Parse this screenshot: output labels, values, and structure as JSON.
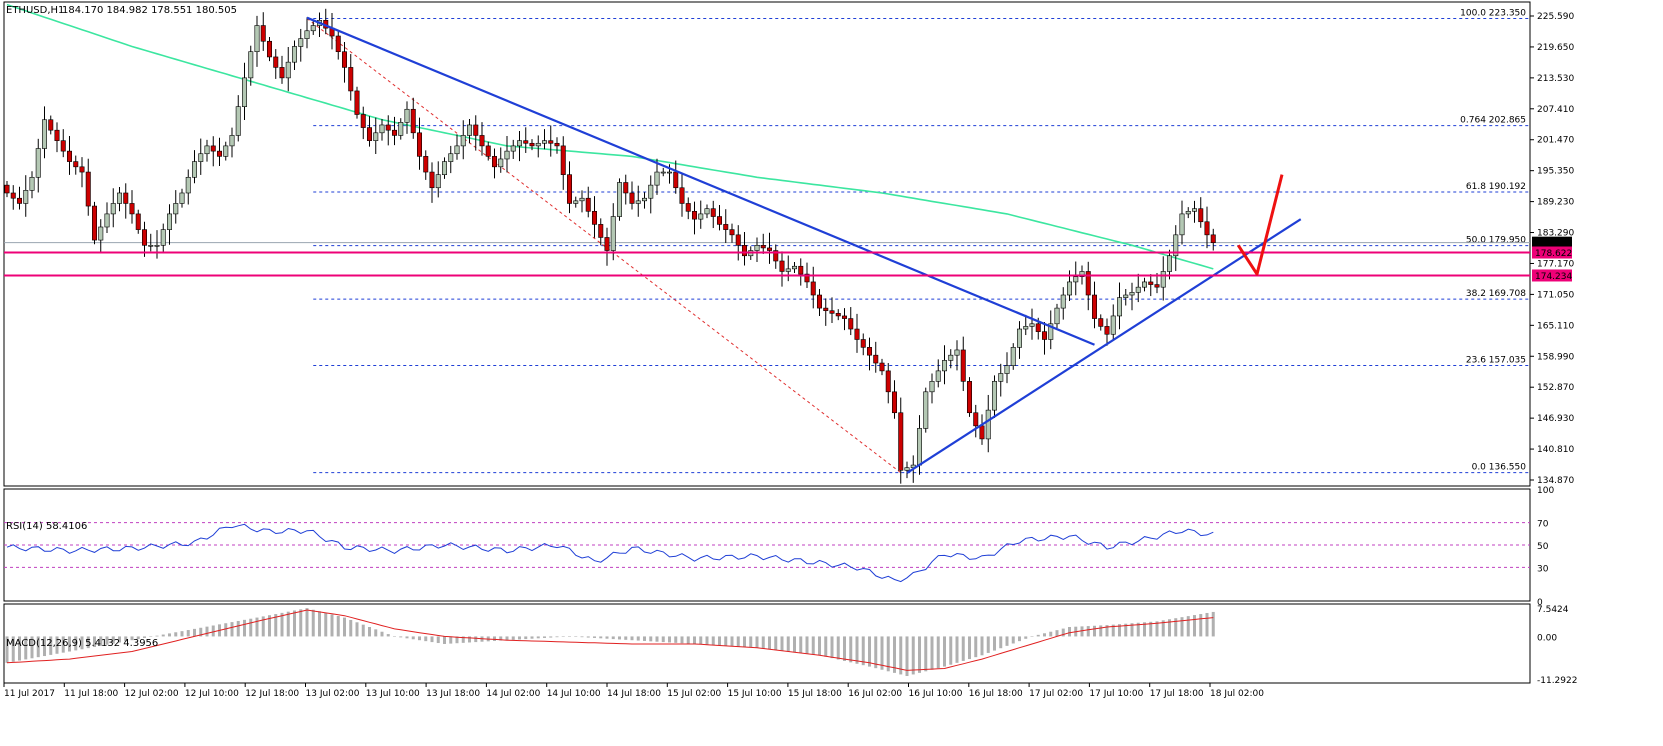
{
  "header": {
    "symbol_label": "ETHUSD,H1",
    "ohlc_label": "184.170 184.982 178.551 180.505"
  },
  "colors": {
    "bull_fill": "#b4c8b4",
    "bear_fill": "#cc0000",
    "candle_outline": "#000000",
    "ma": "#3ce6a0",
    "trendline": "#1f3fd6",
    "fib": "#1f3fd6",
    "fib_diagonal": "#e03030",
    "support": "#ee0077",
    "red_arrow": "#ee1111",
    "rsi": "#1f3fd6",
    "macd_hist": "#b0b0b0",
    "macd_signal": "#e02020",
    "grid": "#000000"
  },
  "main_axis": {
    "ticks": [
      "225.590",
      "219.650",
      "213.530",
      "207.410",
      "201.470",
      "195.350",
      "189.230",
      "183.290",
      "177.170",
      "171.050",
      "165.110",
      "158.990",
      "152.870",
      "146.930",
      "140.810",
      "134.870"
    ],
    "current_price_label": "180.505",
    "badge_1": "178.622",
    "badge_2": "174.234"
  },
  "fib_levels": [
    {
      "label": "100.0  223.350"
    },
    {
      "label": "0.764  202.865"
    },
    {
      "label": "61.8  190.192"
    },
    {
      "label": "50.0  179.950"
    },
    {
      "label": "38.2  169.708"
    },
    {
      "label": "23.6  157.035"
    },
    {
      "label": "0.0  136.550"
    }
  ],
  "rsi": {
    "title": "RSI(14) 58.4106",
    "ticks": [
      "100",
      "70",
      "50",
      "30",
      "0"
    ]
  },
  "macd": {
    "title": "MACD(12,26,9) 5.4132 4.3956",
    "ticks": [
      "7.5424",
      "0.00",
      "-11.2922"
    ]
  },
  "time_axis": [
    "11 Jul 2017",
    "11 Jul 18:00",
    "12 Jul 02:00",
    "12 Jul 10:00",
    "12 Jul 18:00",
    "13 Jul 02:00",
    "13 Jul 10:00",
    "13 Jul 18:00",
    "14 Jul 02:00",
    "14 Jul 10:00",
    "14 Jul 18:00",
    "15 Jul 02:00",
    "15 Jul 10:00",
    "15 Jul 18:00",
    "16 Jul 02:00",
    "16 Jul 10:00",
    "16 Jul 18:00",
    "17 Jul 02:00",
    "17 Jul 10:00",
    "17 Jul 18:00",
    "18 Jul 02:00"
  ],
  "chart_data": {
    "type": "candlestick",
    "symbol": "ETHUSD",
    "timeframe": "H1",
    "y_range": [
      134.0,
      226.5
    ],
    "anchors": [
      [
        0,
        190
      ],
      [
        2,
        188
      ],
      [
        4,
        193
      ],
      [
        6,
        204
      ],
      [
        8,
        200
      ],
      [
        10,
        196
      ],
      [
        12,
        194
      ],
      [
        14,
        181
      ],
      [
        16,
        186
      ],
      [
        18,
        190
      ],
      [
        20,
        186
      ],
      [
        22,
        180
      ],
      [
        24,
        180
      ],
      [
        26,
        186
      ],
      [
        28,
        190
      ],
      [
        30,
        196
      ],
      [
        32,
        199
      ],
      [
        34,
        197
      ],
      [
        36,
        201
      ],
      [
        38,
        212
      ],
      [
        40,
        222
      ],
      [
        42,
        216
      ],
      [
        44,
        212
      ],
      [
        46,
        218
      ],
      [
        48,
        221
      ],
      [
        50,
        223
      ],
      [
        52,
        220
      ],
      [
        54,
        214
      ],
      [
        56,
        205
      ],
      [
        58,
        200
      ],
      [
        60,
        203
      ],
      [
        62,
        201
      ],
      [
        64,
        206
      ],
      [
        66,
        197
      ],
      [
        68,
        191
      ],
      [
        70,
        196
      ],
      [
        72,
        199
      ],
      [
        74,
        203
      ],
      [
        76,
        199
      ],
      [
        78,
        195
      ],
      [
        80,
        198
      ],
      [
        82,
        200
      ],
      [
        84,
        199
      ],
      [
        86,
        200
      ],
      [
        88,
        199
      ],
      [
        90,
        188
      ],
      [
        92,
        189
      ],
      [
        94,
        184
      ],
      [
        96,
        179
      ],
      [
        98,
        192
      ],
      [
        100,
        188
      ],
      [
        102,
        189
      ],
      [
        104,
        194
      ],
      [
        106,
        194
      ],
      [
        108,
        188
      ],
      [
        110,
        185
      ],
      [
        112,
        187
      ],
      [
        114,
        184
      ],
      [
        116,
        182
      ],
      [
        118,
        178
      ],
      [
        120,
        180
      ],
      [
        122,
        179
      ],
      [
        124,
        175
      ],
      [
        126,
        176
      ],
      [
        128,
        173
      ],
      [
        130,
        168
      ],
      [
        132,
        167
      ],
      [
        134,
        166
      ],
      [
        136,
        162
      ],
      [
        138,
        159
      ],
      [
        140,
        156
      ],
      [
        142,
        148
      ],
      [
        143,
        137
      ],
      [
        145,
        138
      ],
      [
        147,
        152
      ],
      [
        150,
        158
      ],
      [
        152,
        160
      ],
      [
        154,
        148
      ],
      [
        156,
        143
      ],
      [
        158,
        154
      ],
      [
        160,
        157
      ],
      [
        162,
        164
      ],
      [
        164,
        165
      ],
      [
        166,
        162
      ],
      [
        168,
        168
      ],
      [
        170,
        173
      ],
      [
        172,
        175
      ],
      [
        174,
        166
      ],
      [
        176,
        163
      ],
      [
        178,
        170
      ],
      [
        180,
        171
      ],
      [
        182,
        173
      ],
      [
        184,
        172
      ],
      [
        186,
        178
      ],
      [
        188,
        186
      ],
      [
        190,
        187
      ],
      [
        192,
        182
      ],
      [
        193,
        180.5
      ]
    ],
    "moving_average": [
      [
        0,
        226
      ],
      [
        20,
        218
      ],
      [
        40,
        211
      ],
      [
        60,
        204
      ],
      [
        80,
        199
      ],
      [
        100,
        197
      ],
      [
        120,
        193
      ],
      [
        140,
        190
      ],
      [
        160,
        186
      ],
      [
        180,
        180
      ],
      [
        193,
        175.5
      ]
    ],
    "fibonacci": [
      {
        "ratio": "100.0",
        "price": 223.35
      },
      {
        "ratio": "0.764",
        "price": 202.865
      },
      {
        "ratio": "61.8",
        "price": 190.192
      },
      {
        "ratio": "50.0",
        "price": 179.95
      },
      {
        "ratio": "38.2",
        "price": 169.708
      },
      {
        "ratio": "23.6",
        "price": 157.035
      },
      {
        "ratio": "0.0",
        "price": 136.55
      }
    ],
    "support_levels": [
      178.622,
      174.234
    ],
    "trendlines": [
      {
        "name": "bearish",
        "from": [
          48,
          223.5
        ],
        "to": [
          174,
          161
        ]
      },
      {
        "name": "bullish",
        "from": [
          144,
          136.5
        ],
        "to": [
          207,
          185
        ]
      }
    ],
    "rsi_range": [
      0,
      100
    ],
    "rsi_levels": [
      70,
      50,
      30
    ],
    "rsi_anchors": [
      [
        0,
        48
      ],
      [
        10,
        45
      ],
      [
        20,
        47
      ],
      [
        30,
        52
      ],
      [
        36,
        68
      ],
      [
        42,
        62
      ],
      [
        48,
        63
      ],
      [
        54,
        48
      ],
      [
        62,
        45
      ],
      [
        70,
        50
      ],
      [
        80,
        45
      ],
      [
        88,
        50
      ],
      [
        94,
        35
      ],
      [
        100,
        47
      ],
      [
        110,
        38
      ],
      [
        120,
        40
      ],
      [
        130,
        34
      ],
      [
        136,
        30
      ],
      [
        142,
        18
      ],
      [
        145,
        23
      ],
      [
        150,
        42
      ],
      [
        156,
        38
      ],
      [
        162,
        54
      ],
      [
        170,
        58
      ],
      [
        176,
        48
      ],
      [
        182,
        55
      ],
      [
        188,
        63
      ],
      [
        193,
        59
      ]
    ],
    "macd_range": [
      -11.2922,
      7.5424
    ],
    "macd_hist_anchors": [
      [
        0,
        -7
      ],
      [
        10,
        -4
      ],
      [
        20,
        -1
      ],
      [
        30,
        2
      ],
      [
        40,
        5
      ],
      [
        48,
        7.5
      ],
      [
        54,
        5
      ],
      [
        62,
        0
      ],
      [
        70,
        -2
      ],
      [
        80,
        -1
      ],
      [
        90,
        0
      ],
      [
        100,
        -1
      ],
      [
        110,
        -2
      ],
      [
        120,
        -3
      ],
      [
        130,
        -5
      ],
      [
        138,
        -8
      ],
      [
        144,
        -10.5
      ],
      [
        150,
        -8
      ],
      [
        156,
        -5
      ],
      [
        164,
        0
      ],
      [
        170,
        2.5
      ],
      [
        176,
        3
      ],
      [
        184,
        4
      ],
      [
        193,
        6.5
      ]
    ],
    "macd_signal_anchors": [
      [
        0,
        -7
      ],
      [
        10,
        -6
      ],
      [
        20,
        -4
      ],
      [
        30,
        0
      ],
      [
        40,
        4
      ],
      [
        48,
        7
      ],
      [
        54,
        5.5
      ],
      [
        62,
        2
      ],
      [
        70,
        0
      ],
      [
        80,
        -1
      ],
      [
        90,
        -1.5
      ],
      [
        100,
        -2
      ],
      [
        110,
        -2
      ],
      [
        120,
        -3
      ],
      [
        130,
        -5
      ],
      [
        138,
        -7
      ],
      [
        144,
        -9
      ],
      [
        150,
        -8.5
      ],
      [
        156,
        -6
      ],
      [
        164,
        -2
      ],
      [
        170,
        1
      ],
      [
        176,
        2.5
      ],
      [
        184,
        3.5
      ],
      [
        193,
        5
      ]
    ]
  }
}
